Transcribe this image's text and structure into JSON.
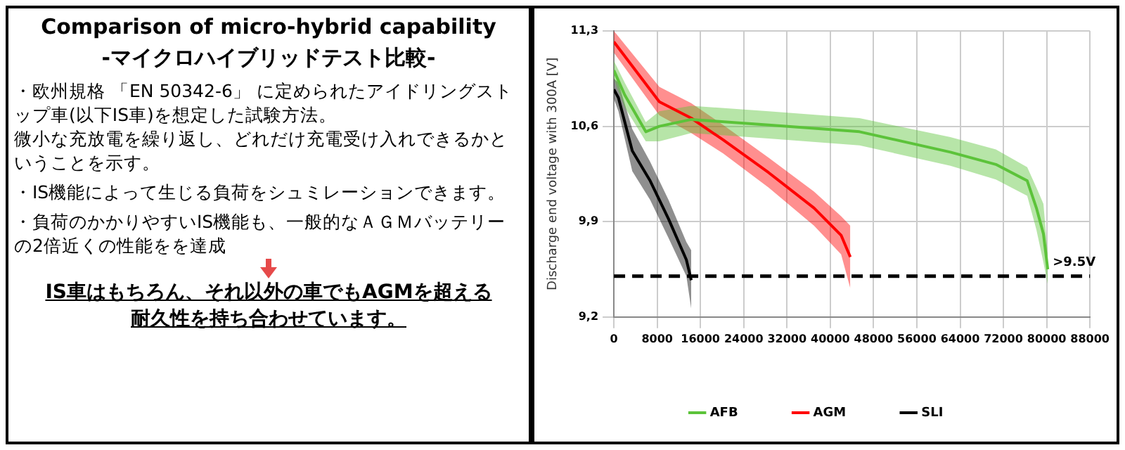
{
  "chart_data": [
    {
      "type": "other",
      "title": "Comparison of micro-hybrid capability",
      "subtitle": "-マイクロハイブリッドテスト比較-",
      "annotations": [
        "・欧州規格 「EN 50342-6」 に定められたアイドリングストップ車(以下IS車)を想定した試験方法。",
        "微小な充放電を繰り返し、どれだけ充電受け入れできるかということを示す。",
        "・IS機能によって生じる負荷をシュミレーションできます。",
        "・負荷のかかりやすいIS機能も、一般的なＡＧＭバッテリーの2倍近くの性能をを達成",
        "IS車はもちろん、それ以外の車でもAGMを超える耐久性を持ち合わせています。"
      ]
    },
    {
      "type": "line",
      "ylabel": "Discharge end voltage with 300A [V]",
      "xlim": [
        0,
        88000
      ],
      "xticks": [
        0,
        8000,
        16000,
        24000,
        32000,
        40000,
        48000,
        56000,
        64000,
        72000,
        80000,
        88000
      ],
      "ylim": [
        9.2,
        11.3
      ],
      "yticks": [
        {
          "value": 9.2,
          "label": "9,2"
        },
        {
          "value": 9.9,
          "label": "9,9"
        },
        {
          "value": 10.6,
          "label": "10,6"
        },
        {
          "value": 11.3,
          "label": "11,3"
        }
      ],
      "grid": true,
      "legend": "bottom",
      "marker": "none",
      "line_style": "solid",
      "ref_lines": [
        {
          "axis": "y",
          "value": 9.5,
          "label": ">9.5V",
          "color": "#000000",
          "line_style": "dashed"
        }
      ],
      "series": [
        {
          "name": "AFB",
          "color": "#5cc33a",
          "x": [
            0,
            2000,
            5900,
            8400,
            14300,
            28600,
            45400,
            62200,
            70600,
            76400,
            78100,
            79400,
            80200
          ],
          "values": [
            11.01,
            10.83,
            10.56,
            10.6,
            10.65,
            10.61,
            10.56,
            10.41,
            10.32,
            10.2,
            10.0,
            9.81,
            9.55
          ],
          "lower": [
            10.95,
            10.74,
            10.49,
            10.49,
            10.55,
            10.51,
            10.46,
            10.31,
            10.21,
            10.09,
            9.84,
            9.6,
            9.44
          ],
          "upper": [
            11.08,
            10.92,
            10.63,
            10.71,
            10.75,
            10.71,
            10.66,
            10.52,
            10.43,
            10.3,
            10.15,
            10.03,
            9.66
          ]
        },
        {
          "name": "AGM",
          "color": "#ff0000",
          "x": [
            0,
            8400,
            14300,
            20200,
            28600,
            37000,
            42000,
            43700
          ],
          "values": [
            11.22,
            10.78,
            10.66,
            10.5,
            10.26,
            10.0,
            9.8,
            9.64
          ],
          "lower": [
            11.14,
            10.68,
            10.55,
            10.4,
            10.15,
            9.87,
            9.66,
            9.41
          ],
          "upper": [
            11.3,
            10.89,
            10.77,
            10.61,
            10.37,
            10.12,
            9.94,
            9.87
          ]
        },
        {
          "name": "SLI",
          "color": "#000000",
          "x": [
            0,
            840,
            3400,
            6700,
            10100,
            13400,
            14300
          ],
          "values": [
            10.87,
            10.81,
            10.42,
            10.2,
            9.92,
            9.62,
            9.47
          ],
          "lower": [
            10.8,
            10.71,
            10.27,
            10.06,
            9.78,
            9.5,
            9.26
          ],
          "upper": [
            10.95,
            10.92,
            10.58,
            10.34,
            10.06,
            9.75,
            9.69
          ]
        }
      ]
    }
  ]
}
